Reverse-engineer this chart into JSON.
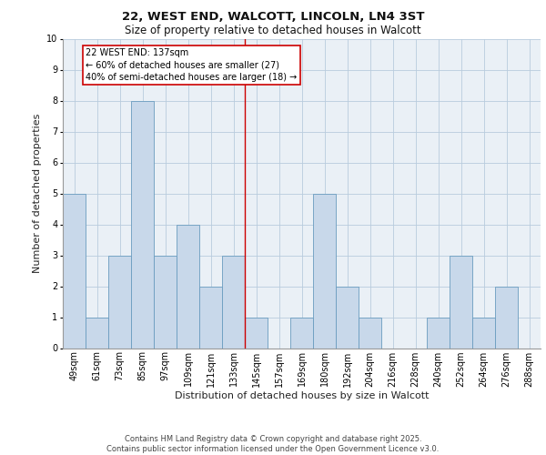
{
  "title_line1": "22, WEST END, WALCOTT, LINCOLN, LN4 3ST",
  "title_line2": "Size of property relative to detached houses in Walcott",
  "xlabel": "Distribution of detached houses by size in Walcott",
  "ylabel": "Number of detached properties",
  "bar_labels": [
    "49sqm",
    "61sqm",
    "73sqm",
    "85sqm",
    "97sqm",
    "109sqm",
    "121sqm",
    "133sqm",
    "145sqm",
    "157sqm",
    "169sqm",
    "180sqm",
    "192sqm",
    "204sqm",
    "216sqm",
    "228sqm",
    "240sqm",
    "252sqm",
    "264sqm",
    "276sqm",
    "288sqm"
  ],
  "bar_values": [
    5,
    1,
    3,
    8,
    3,
    4,
    2,
    3,
    1,
    0,
    1,
    5,
    2,
    1,
    0,
    0,
    1,
    3,
    1,
    2,
    0
  ],
  "bar_color": "#c8d8ea",
  "bar_edge_color": "#6a9cbf",
  "vline_x": 7.5,
  "vline_color": "#cc0000",
  "annotation_text": "22 WEST END: 137sqm\n← 60% of detached houses are smaller (27)\n40% of semi-detached houses are larger (18) →",
  "annotation_box_edgecolor": "#cc0000",
  "annotation_text_color": "#000000",
  "ylim": [
    0,
    10
  ],
  "yticks": [
    0,
    1,
    2,
    3,
    4,
    5,
    6,
    7,
    8,
    9,
    10
  ],
  "grid_color": "#b8ccdd",
  "background_color": "#eaf0f6",
  "footer_text": "Contains HM Land Registry data © Crown copyright and database right 2025.\nContains public sector information licensed under the Open Government Licence v3.0.",
  "title_fontsize": 9.5,
  "subtitle_fontsize": 8.5,
  "axis_label_fontsize": 8,
  "tick_fontsize": 7,
  "annotation_fontsize": 7,
  "footer_fontsize": 6
}
